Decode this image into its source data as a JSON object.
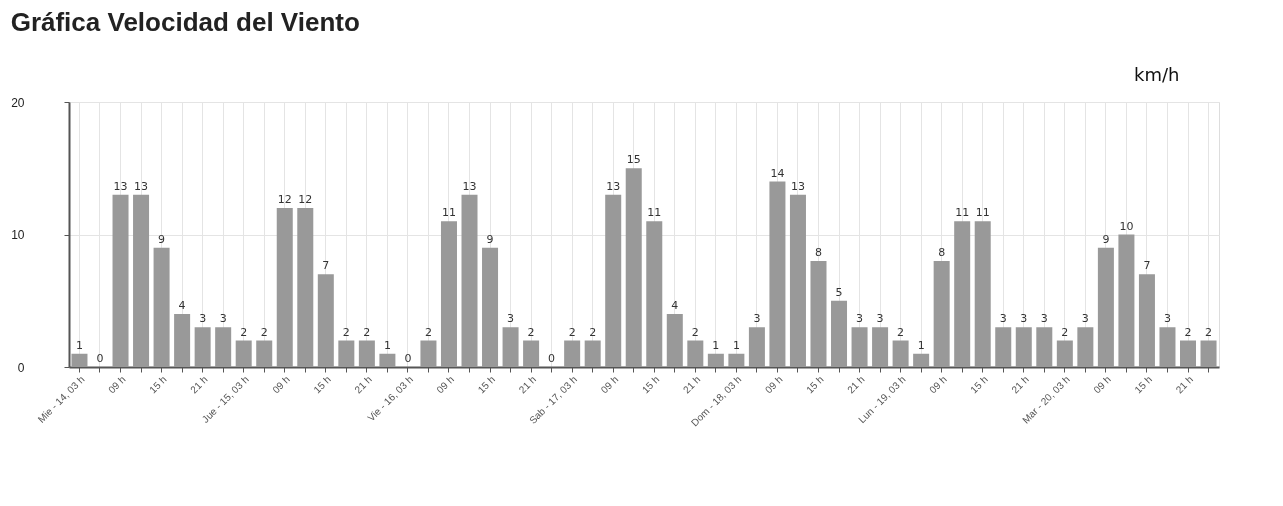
{
  "chart_data": {
    "type": "bar",
    "title": "Gráfica Velocidad del Viento",
    "ylabel": "km/h",
    "categories": [
      "Mie - 14, 03 h",
      null,
      "09 h",
      null,
      "15 h",
      null,
      "21 h",
      null,
      "Jue - 15, 03 h",
      null,
      "09 h",
      null,
      "15 h",
      null,
      "21 h",
      null,
      "Vie - 16, 03 h",
      null,
      "09 h",
      null,
      "15 h",
      null,
      "21 h",
      null,
      "Sab - 17, 03 h",
      null,
      "09 h",
      null,
      "15 h",
      null,
      "21 h",
      null,
      "Dom - 18, 03 h",
      null,
      "09 h",
      null,
      "15 h",
      null,
      "21 h",
      null,
      "Lun - 19, 03 h",
      null,
      "09 h",
      null,
      "15 h",
      null,
      "21 h",
      null,
      "Mar - 20, 03 h",
      null,
      "09 h",
      null,
      "15 h",
      null,
      "21 h",
      null
    ],
    "values": [
      1,
      0,
      13,
      13,
      9,
      4,
      3,
      3,
      2,
      2,
      12,
      12,
      7,
      2,
      2,
      1,
      0,
      2,
      11,
      13,
      9,
      3,
      2,
      0,
      2,
      2,
      13,
      15,
      11,
      4,
      2,
      1,
      1,
      3,
      14,
      13,
      8,
      5,
      3,
      3,
      2,
      1,
      8,
      11,
      11,
      3,
      3,
      3,
      2,
      3,
      9,
      10,
      7,
      3,
      2,
      2
    ],
    "color": "#999999",
    "ylim": [
      0,
      20
    ],
    "yticks": [
      0,
      10,
      20
    ],
    "grid": true,
    "data_labels": true
  }
}
